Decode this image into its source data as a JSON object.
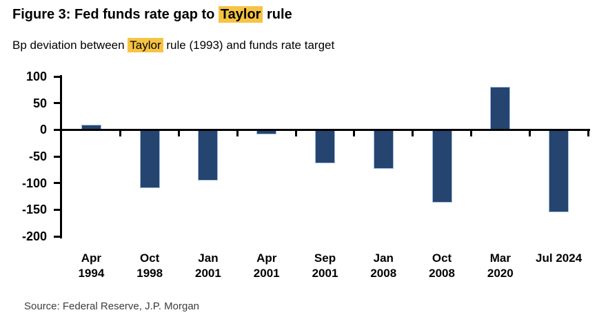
{
  "header": {
    "title_parts": [
      {
        "text": "Figure 3: Fed funds rate gap to ",
        "highlight": false
      },
      {
        "text": "Taylor",
        "highlight": true
      },
      {
        "text": " rule",
        "highlight": false
      }
    ],
    "subtitle_parts": [
      {
        "text": "Bp deviation between ",
        "highlight": false
      },
      {
        "text": "Taylor",
        "highlight": true
      },
      {
        "text": " rule (1993) and funds rate target",
        "highlight": false
      }
    ]
  },
  "chart_data": {
    "type": "bar",
    "title": "Figure 3: Fed funds rate gap to Taylor rule",
    "subtitle": "Bp deviation between Taylor rule (1993) and funds rate target",
    "unit": "bp",
    "categories": [
      "Apr 1994",
      "Oct 1998",
      "Jan 2001",
      "Apr 2001",
      "Sep 2001",
      "Jan 2008",
      "Oct 2008",
      "Mar 2020",
      "Jul 2024"
    ],
    "category_label_lines": [
      [
        "Apr",
        "1994"
      ],
      [
        "Oct",
        "1998"
      ],
      [
        "Jan",
        "2001"
      ],
      [
        "Apr",
        "2001"
      ],
      [
        "Sep",
        "2001"
      ],
      [
        "Jan",
        "2008"
      ],
      [
        "Oct",
        "2008"
      ],
      [
        "Mar",
        "2020"
      ],
      [
        "Jul 2024"
      ]
    ],
    "values": [
      10,
      -110,
      -95,
      -8,
      -63,
      -73,
      -137,
      80,
      -155
    ],
    "ylim": [
      -200,
      100
    ],
    "yticks": [
      100,
      50,
      0,
      -50,
      -100,
      -150,
      -200
    ],
    "grid": false,
    "legend_position": "none",
    "bar_color": "#254570",
    "bar_edge_color": "#a3bedd",
    "highlight_color": "#f6c343",
    "axis_color": "#000000"
  },
  "source": "Source: Federal Reserve, J.P. Morgan"
}
